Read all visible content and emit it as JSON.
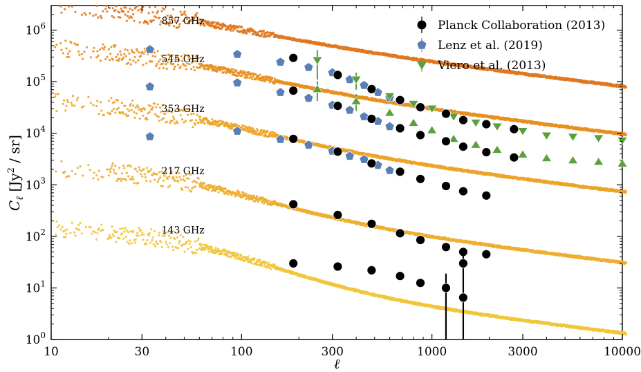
{
  "chart_data": {
    "type": "scatter",
    "xlabel": "ℓ",
    "ylabel": "C_ℓ [Jy² / sr]",
    "ylabel_parts": {
      "main": "C",
      "sub": "ℓ",
      "unit": "[Jy",
      "sup": "2",
      "unit_end": " / sr]"
    },
    "x_scale": "log",
    "y_scale": "log",
    "xlim": [
      10,
      10000
    ],
    "ylim": [
      1,
      3000000
    ],
    "x_ticks": [
      10,
      30,
      100,
      300,
      1000,
      3000,
      10000
    ],
    "x_tick_labels": [
      "10",
      "30",
      "100",
      "300",
      "1000",
      "3000",
      "10000"
    ],
    "y_ticks": [
      1,
      10,
      100,
      1000,
      10000,
      100000,
      1000000
    ],
    "y_tick_labels": [
      {
        "base": "10",
        "exp": "0"
      },
      {
        "base": "10",
        "exp": "1"
      },
      {
        "base": "10",
        "exp": "2"
      },
      {
        "base": "10",
        "exp": "3"
      },
      {
        "base": "10",
        "exp": "4"
      },
      {
        "base": "10",
        "exp": "5"
      },
      {
        "base": "10",
        "exp": "6"
      }
    ],
    "grid": false,
    "legend_position": "top-right",
    "frequency_bands": [
      {
        "label": "857 GHz",
        "color": "#e07820",
        "amplitude": 1400000,
        "knee": 50,
        "slope": 1.1,
        "tail": 1.8e-06,
        "label_x": 38,
        "label_y": 1300000
      },
      {
        "label": "545 GHz",
        "color": "#e8901f",
        "amplitude": 250000,
        "knee": 50,
        "slope": 1.15,
        "tail": 1.2e-06,
        "label_x": 38,
        "label_y": 240000
      },
      {
        "label": "353 GHz",
        "color": "#eca428",
        "amplitude": 26000,
        "knee": 50,
        "slope": 1.15,
        "tail": 1e-06,
        "label_x": 38,
        "label_y": 26000
      },
      {
        "label": "217 GHz",
        "color": "#eeae30",
        "amplitude": 1600,
        "knee": 50,
        "slope": 1.25,
        "tail": 8e-07,
        "label_x": 38,
        "label_y": 1600
      },
      {
        "label": "143 GHz",
        "color": "#f1c63b",
        "amplitude": 110,
        "knee": 55,
        "slope": 1.35,
        "tail": 6e-07,
        "label_x": 38,
        "label_y": 115
      }
    ],
    "series": [
      {
        "name": "Planck Collaboration (2013)",
        "marker": "circle",
        "color": "#000000",
        "points": [
          {
            "x": 187,
            "y": 290000
          },
          {
            "x": 320,
            "y": 135000
          },
          {
            "x": 482,
            "y": 72000
          },
          {
            "x": 680,
            "y": 44000
          },
          {
            "x": 870,
            "y": 32000
          },
          {
            "x": 1185,
            "y": 24000
          },
          {
            "x": 1460,
            "y": 18000
          },
          {
            "x": 1930,
            "y": 15000
          },
          {
            "x": 2700,
            "y": 12000
          },
          {
            "x": 187,
            "y": 67000
          },
          {
            "x": 320,
            "y": 34000
          },
          {
            "x": 482,
            "y": 19000
          },
          {
            "x": 680,
            "y": 12500
          },
          {
            "x": 870,
            "y": 9200
          },
          {
            "x": 1185,
            "y": 7000
          },
          {
            "x": 1460,
            "y": 5500
          },
          {
            "x": 1930,
            "y": 4300
          },
          {
            "x": 2700,
            "y": 3400
          },
          {
            "x": 187,
            "y": 7800
          },
          {
            "x": 320,
            "y": 4400
          },
          {
            "x": 482,
            "y": 2600
          },
          {
            "x": 680,
            "y": 1800
          },
          {
            "x": 870,
            "y": 1300
          },
          {
            "x": 1185,
            "y": 950
          },
          {
            "x": 1460,
            "y": 750
          },
          {
            "x": 1930,
            "y": 620
          },
          {
            "x": 187,
            "y": 420
          },
          {
            "x": 320,
            "y": 260
          },
          {
            "x": 482,
            "y": 175
          },
          {
            "x": 680,
            "y": 115
          },
          {
            "x": 870,
            "y": 85
          },
          {
            "x": 1185,
            "y": 62
          },
          {
            "x": 1460,
            "y": 50
          },
          {
            "x": 1930,
            "y": 45
          },
          {
            "x": 187,
            "y": 30
          },
          {
            "x": 320,
            "y": 26
          },
          {
            "x": 482,
            "y": 22
          },
          {
            "x": 680,
            "y": 17
          },
          {
            "x": 870,
            "y": 12.5
          },
          {
            "x": 1185,
            "y": 10
          },
          {
            "x": 1460,
            "y": 30
          },
          {
            "x": 1460,
            "y": 6.5
          }
        ]
      },
      {
        "name": "Lenz et al. (2019)",
        "marker": "pentagon",
        "color": "#5a7fb5",
        "points": [
          {
            "x": 33,
            "y": 420000
          },
          {
            "x": 95,
            "y": 340000
          },
          {
            "x": 160,
            "y": 240000
          },
          {
            "x": 225,
            "y": 190000
          },
          {
            "x": 300,
            "y": 150000
          },
          {
            "x": 370,
            "y": 110000
          },
          {
            "x": 440,
            "y": 85000
          },
          {
            "x": 520,
            "y": 62000
          },
          {
            "x": 600,
            "y": 49000
          },
          {
            "x": 33,
            "y": 80000
          },
          {
            "x": 95,
            "y": 95000
          },
          {
            "x": 160,
            "y": 62000
          },
          {
            "x": 225,
            "y": 48000
          },
          {
            "x": 300,
            "y": 35000
          },
          {
            "x": 370,
            "y": 28000
          },
          {
            "x": 440,
            "y": 21000
          },
          {
            "x": 520,
            "y": 17000
          },
          {
            "x": 600,
            "y": 13500
          },
          {
            "x": 33,
            "y": 8600
          },
          {
            "x": 95,
            "y": 11000
          },
          {
            "x": 160,
            "y": 7600
          },
          {
            "x": 225,
            "y": 5900
          },
          {
            "x": 300,
            "y": 4500
          },
          {
            "x": 370,
            "y": 3600
          },
          {
            "x": 440,
            "y": 3100
          },
          {
            "x": 520,
            "y": 2400
          },
          {
            "x": 600,
            "y": 1900
          }
        ]
      },
      {
        "name": "Viero et al. (2013)",
        "marker": "triangle",
        "color": "#5aa03c",
        "points": [
          {
            "x": 250,
            "y": 260000,
            "err": 150000,
            "dir": "down"
          },
          {
            "x": 400,
            "y": 110000,
            "err": 40000,
            "dir": "down"
          },
          {
            "x": 600,
            "y": 52000,
            "dir": "down"
          },
          {
            "x": 800,
            "y": 37000,
            "dir": "down"
          },
          {
            "x": 1000,
            "y": 30000,
            "dir": "down"
          },
          {
            "x": 1300,
            "y": 21000,
            "dir": "down"
          },
          {
            "x": 1700,
            "y": 16000,
            "dir": "down"
          },
          {
            "x": 2200,
            "y": 13500,
            "dir": "down"
          },
          {
            "x": 3000,
            "y": 11000,
            "dir": "down"
          },
          {
            "x": 4000,
            "y": 9000,
            "dir": "down"
          },
          {
            "x": 5500,
            "y": 8500,
            "dir": "down"
          },
          {
            "x": 7500,
            "y": 8000,
            "dir": "down"
          },
          {
            "x": 10000,
            "y": 7200,
            "dir": "down"
          },
          {
            "x": 250,
            "y": 72000,
            "err": 30000,
            "dir": "up"
          },
          {
            "x": 400,
            "y": 42000,
            "err": 15000,
            "dir": "up"
          },
          {
            "x": 600,
            "y": 25000,
            "dir": "up"
          },
          {
            "x": 800,
            "y": 16000,
            "dir": "up"
          },
          {
            "x": 1000,
            "y": 11500,
            "dir": "up"
          },
          {
            "x": 1300,
            "y": 7800,
            "dir": "up"
          },
          {
            "x": 1700,
            "y": 6000,
            "dir": "up"
          },
          {
            "x": 2200,
            "y": 4800,
            "dir": "up"
          },
          {
            "x": 3000,
            "y": 3900,
            "dir": "up"
          },
          {
            "x": 4000,
            "y": 3300,
            "dir": "up"
          },
          {
            "x": 5500,
            "y": 3000,
            "dir": "up"
          },
          {
            "x": 7500,
            "y": 2800,
            "dir": "up"
          },
          {
            "x": 10000,
            "y": 2600,
            "dir": "up"
          }
        ]
      }
    ]
  }
}
